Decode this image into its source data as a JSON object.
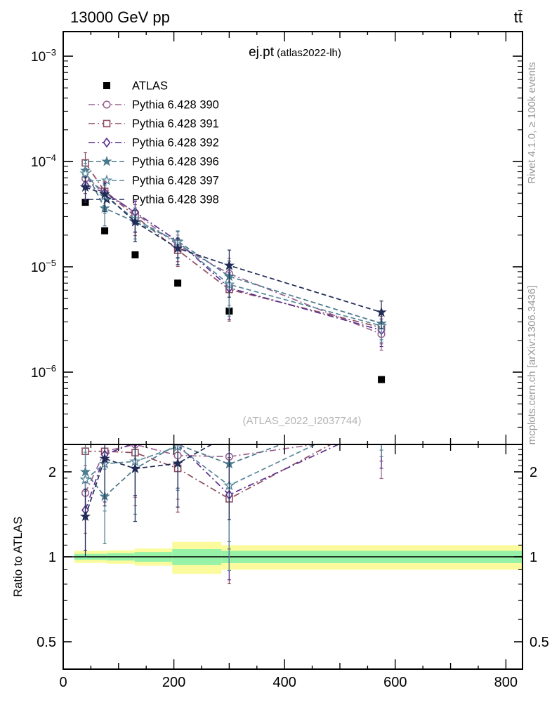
{
  "header": {
    "left": "13000 GeV pp",
    "right": "tt̄"
  },
  "side_notes": {
    "top": "Rivet 4.1.0, ≥ 100k events",
    "bottom": "mcplots.cern.ch [arXiv:1306.3436]"
  },
  "watermark": "(ATLAS_2022_I2037744)",
  "panel": {
    "title_main": "ej.pt",
    "title_sub": " (atlas2022-lh)",
    "ratio_ylabel": "Ratio to ATLAS"
  },
  "colors": {
    "frame": "#000000",
    "band_outer": "#fbfb9e",
    "band_inner": "#96f2a6",
    "gray_text": "#9a9a9a",
    "watermark_text": "#b5b5b5"
  },
  "chart_data": {
    "type": "line",
    "title": "ej.pt (atlas2022-lh)",
    "xlabel": "",
    "ylabel": "",
    "ratio_ylabel": "Ratio to ATLAS",
    "xlim": [
      0,
      830
    ],
    "x_major_ticks": [
      0,
      200,
      400,
      600,
      800
    ],
    "x_minor_step": 50,
    "main_panel": {
      "yscale": "log",
      "ylim": [
        2.1e-07,
        0.0017
      ],
      "tick_exponents": [
        -3,
        -4,
        -5,
        -6
      ]
    },
    "ratio_panel": {
      "yscale": "log",
      "ylim": [
        0.4,
        2.5
      ],
      "ticks": [
        {
          "v": 2,
          "label": "2"
        },
        {
          "v": 1,
          "label": "1"
        },
        {
          "v": 0.5,
          "label": "0.5"
        }
      ],
      "minor_ticks": [
        0.6,
        0.7,
        0.8,
        0.9,
        1.1,
        1.2,
        1.3,
        1.4,
        1.5,
        1.6,
        1.7,
        1.8,
        1.9,
        2.1,
        2.2,
        2.3,
        2.4
      ],
      "unity": 1
    },
    "x": [
      40,
      75,
      130,
      207,
      300,
      575
    ],
    "err_lo_frac": [
      0.28,
      0.32,
      0.35,
      0.3,
      0.5,
      0.3
    ],
    "err_hi_frac": [
      0.25,
      0.25,
      0.28,
      0.25,
      0.4,
      0.28
    ],
    "series": [
      {
        "name": "ATLAS",
        "role": "data",
        "color": "#000000",
        "marker": "square-filled",
        "line": "none",
        "values": [
          4.1e-05,
          2.2e-05,
          1.3e-05,
          7e-06,
          3.8e-06,
          8.5e-07
        ]
      },
      {
        "name": "Pythia 6.428 390",
        "role": "mc",
        "color": "#9b6492",
        "marker": "circle-open",
        "line": "dashdot",
        "values": [
          6.9e-05,
          5.2e-05,
          3.25e-05,
          1.6e-05,
          8.6e-06,
          2.3e-06
        ]
      },
      {
        "name": "Pythia 6.428 391",
        "role": "mc",
        "color": "#8e4d60",
        "marker": "square-open",
        "line": "dashdot",
        "values": [
          9.7e-05,
          5.2e-05,
          3.04e-05,
          1.44e-05,
          6.1e-06,
          2.65e-06
        ]
      },
      {
        "name": "Pythia 6.428 392",
        "role": "mc",
        "color": "#5c2f8f",
        "marker": "diamond-open",
        "line": "dashdot",
        "values": [
          6e-05,
          5.06e-05,
          3.3e-05,
          1.75e-05,
          6.3e-06,
          2.5e-06
        ]
      },
      {
        "name": "Pythia 6.428 396",
        "role": "mc",
        "color": "#49798b",
        "marker": "star-filled",
        "line": "dashed",
        "values": [
          8.2e-05,
          3.6e-05,
          2.67e-05,
          1.75e-05,
          8.1e-06,
          2.9e-06
        ]
      },
      {
        "name": "Pythia 6.428 397",
        "role": "mc",
        "color": "#57889b",
        "marker": "star-open",
        "line": "dashed",
        "values": [
          7.7e-05,
          4.7e-05,
          2.83e-05,
          1.72e-05,
          6.8e-06,
          2.75e-06
        ]
      },
      {
        "name": "Pythia 6.428 398",
        "role": "mc",
        "color": "#202b56",
        "marker": "star-filled",
        "line": "dashed",
        "values": [
          5.7e-05,
          4.9e-05,
          2.67e-05,
          1.5e-05,
          1.03e-05,
          3.7e-06
        ]
      }
    ],
    "ratio_band": {
      "outer_color": "#fbfb9e",
      "inner_color": "#96f2a6",
      "segments": [
        {
          "x0": 20,
          "x1": 79,
          "outer": 0.05,
          "inner": 0.025
        },
        {
          "x0": 79,
          "x1": 129,
          "outer": 0.055,
          "inner": 0.03
        },
        {
          "x0": 129,
          "x1": 197,
          "outer": 0.07,
          "inner": 0.04
        },
        {
          "x0": 197,
          "x1": 286,
          "outer": 0.13,
          "inner": 0.065
        },
        {
          "x0": 286,
          "x1": 830,
          "outer": 0.1,
          "inner": 0.05
        }
      ]
    },
    "legend_position": "top-left-inside"
  }
}
